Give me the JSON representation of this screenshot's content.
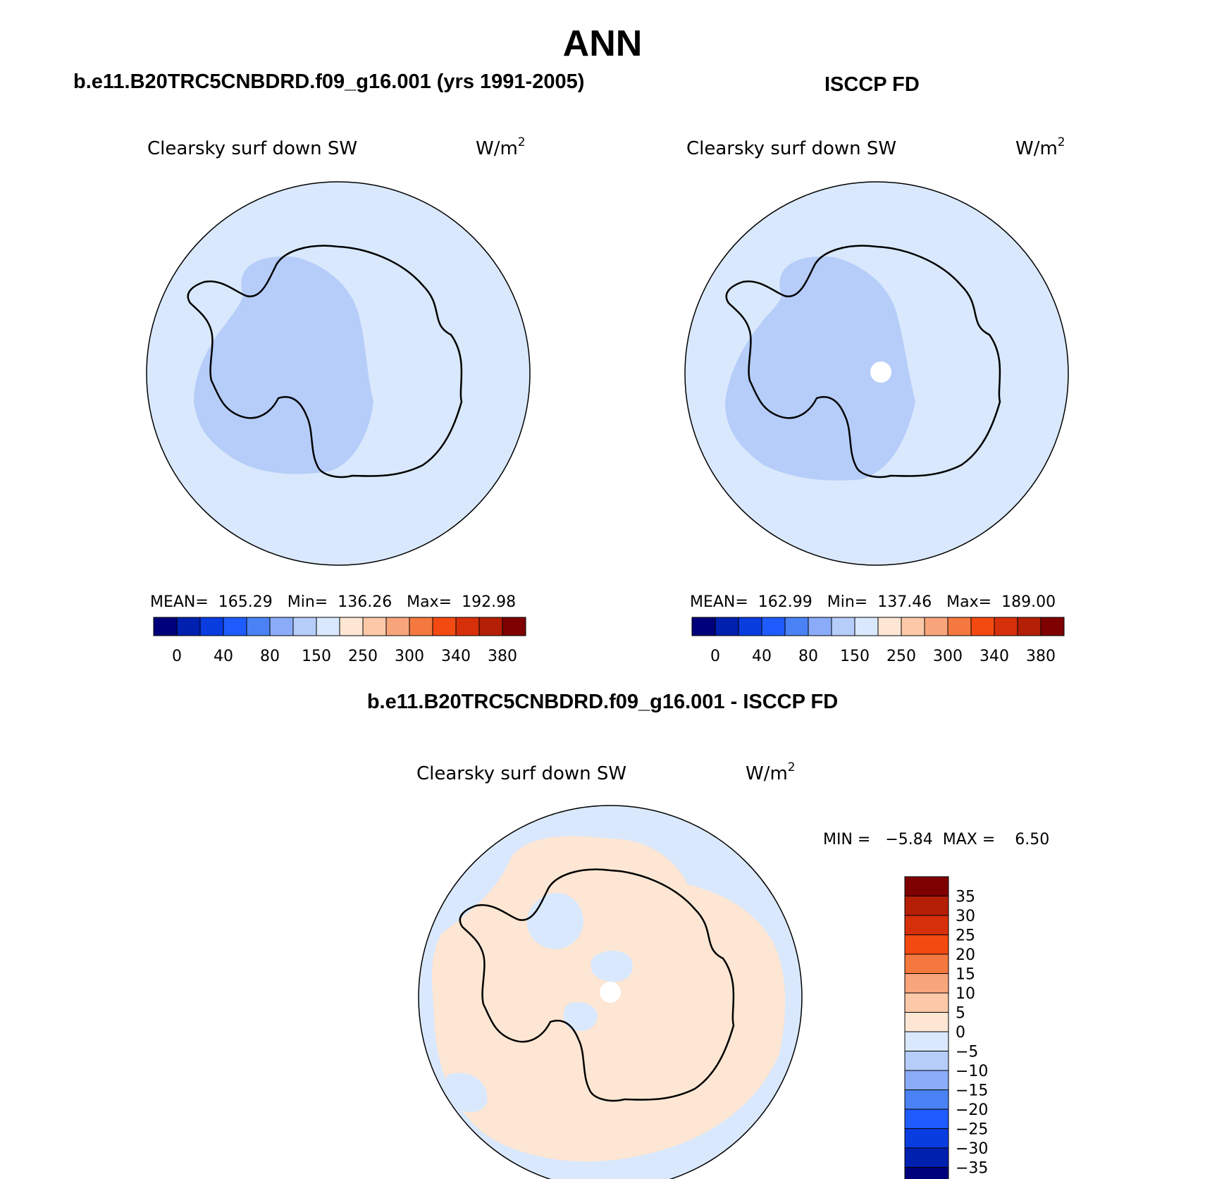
{
  "main_title": "ANN",
  "left_panel": {
    "heading": "b.e11.B20TRC5CNBDRD.f09_g16.001 (yrs 1991-2005)",
    "variable": "Clearsky surf down SW",
    "units_base": "W/m",
    "units_exp": "2",
    "stats": "MEAN=  165.29   Min=  136.26   Max=  192.98"
  },
  "right_panel": {
    "heading": "ISCCP FD",
    "variable": "Clearsky surf down SW",
    "units_base": "W/m",
    "units_exp": "2",
    "stats": "MEAN=  162.99   Min=  137.46   Max=  189.00"
  },
  "bottom_panel": {
    "heading": "b.e11.B20TRC5CNBDRD.f09_g16.001 - ISCCP FD",
    "variable": "Clearsky surf down SW",
    "units_base": "W/m",
    "units_exp": "2",
    "minmax": "MIN =   −5.84  MAX =    6.50"
  },
  "colorbar_main": {
    "colors": [
      "#00007a",
      "#0020b0",
      "#0a3de0",
      "#1f5cff",
      "#4a82f5",
      "#8aabf7",
      "#b6cdfa",
      "#d9e8fc",
      "#fde6d3",
      "#fbc9a8",
      "#f8a57c",
      "#f5793f",
      "#f34a12",
      "#d6300a",
      "#b41f06",
      "#7f0000"
    ],
    "labels": [
      "0",
      "40",
      "80",
      "150",
      "250",
      "300",
      "340",
      "380"
    ]
  },
  "colorbar_diff": {
    "colors": [
      "#7f0000",
      "#b41f06",
      "#d6300a",
      "#f34a12",
      "#f5793f",
      "#f8a57c",
      "#fbc9a8",
      "#fde6d3",
      "#d9e8fc",
      "#b6cdfa",
      "#8aabf7",
      "#4a82f5",
      "#1f5cff",
      "#0a3de0",
      "#0020b0",
      "#00007a"
    ],
    "labels": [
      "35",
      "30",
      "25",
      "20",
      "15",
      "10",
      "5",
      "0",
      "−5",
      "−10",
      "−15",
      "−20",
      "−25",
      "−30",
      "−35"
    ]
  },
  "colors": {
    "ocean_fill": "#d9e8fc",
    "interior_fill": "#b6cdfa",
    "diff_positive": "#fde6d3",
    "diff_negative": "#d9e8fc",
    "coast": "#000000"
  }
}
